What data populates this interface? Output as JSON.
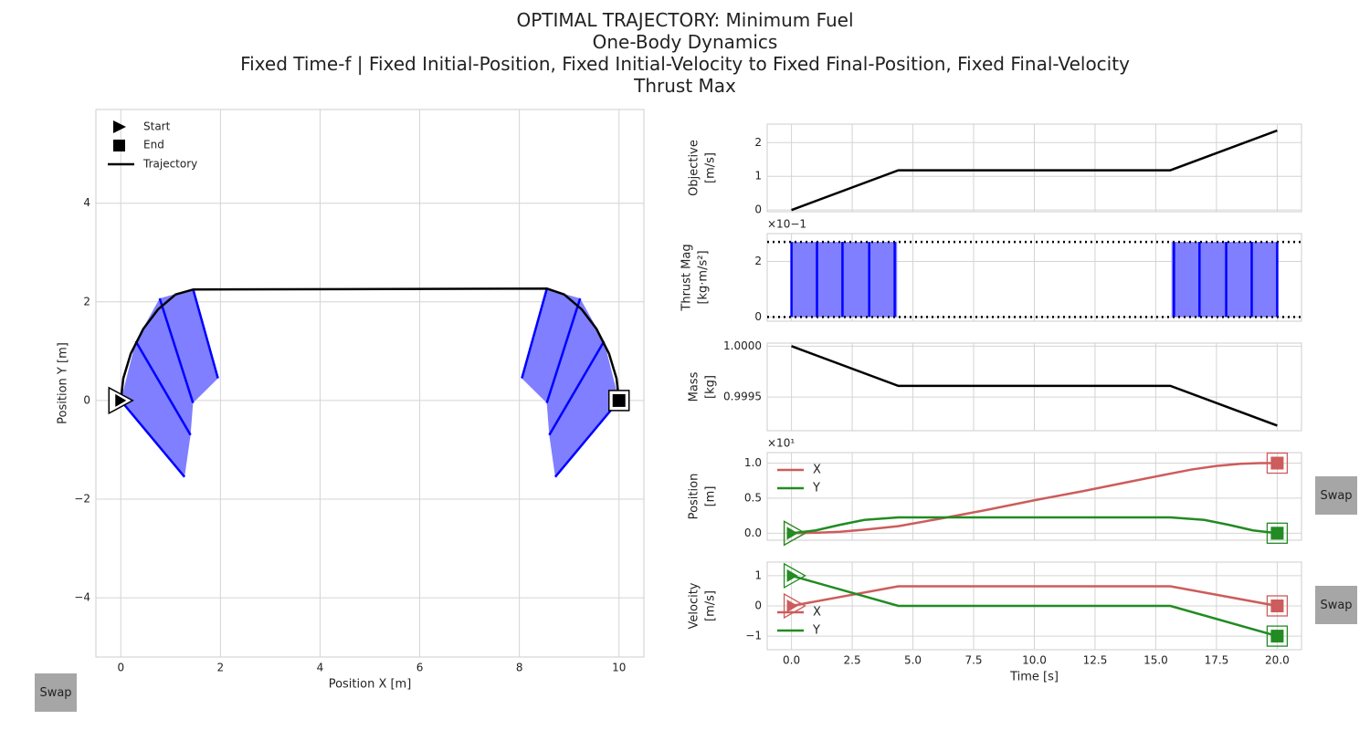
{
  "title_lines": [
    "OPTIMAL TRAJECTORY: Minimum Fuel",
    "One-Body Dynamics",
    "Fixed Time-f | Fixed Initial-Position, Fixed Initial-Velocity to Fixed Final-Position, Fixed Final-Velocity",
    "Thrust Max"
  ],
  "buttons": {
    "swap_label": "Swap"
  },
  "colors": {
    "trajectory": "#000000",
    "thrust": "#0000ff",
    "thrust_fill": "#7f7fff",
    "x_series": "#cd5c5c",
    "y_series": "#228b22",
    "grid": "#d4d4d4",
    "frame": "#cccccc"
  },
  "chart_data": [
    {
      "id": "trajectory",
      "type": "line",
      "xlabel": "Position X [m]",
      "ylabel": "Position Y [m]",
      "xlim": [
        -0.5,
        10.5
      ],
      "ylim": [
        -5.2,
        5.9
      ],
      "xticks": [
        0,
        2,
        4,
        6,
        8,
        10
      ],
      "yticks": [
        -4,
        -2,
        0,
        2,
        4
      ],
      "ytick_labels": [
        "−4",
        "−2",
        "0",
        "2",
        "4"
      ],
      "legend": [
        "Start",
        "End",
        "Trajectory"
      ],
      "legend_position": "top-left",
      "grid": true,
      "path": [
        [
          0,
          0
        ],
        [
          0.05,
          0.45
        ],
        [
          0.2,
          0.95
        ],
        [
          0.45,
          1.45
        ],
        [
          0.75,
          1.85
        ],
        [
          1.1,
          2.15
        ],
        [
          1.45,
          2.25
        ],
        [
          8.55,
          2.27
        ],
        [
          8.9,
          2.15
        ],
        [
          9.25,
          1.85
        ],
        [
          9.55,
          1.45
        ],
        [
          9.8,
          0.95
        ],
        [
          9.95,
          0.45
        ],
        [
          10,
          0
        ]
      ],
      "thrust_vectors_start": [
        [
          [
            0,
            0
          ],
          [
            1.28,
            -1.55
          ]
        ],
        [
          [
            0.3,
            1.2
          ],
          [
            1.4,
            -0.7
          ]
        ],
        [
          [
            0.78,
            2.07
          ],
          [
            1.45,
            -0.05
          ]
        ],
        [
          [
            1.45,
            2.26
          ],
          [
            1.95,
            0.45
          ]
        ]
      ],
      "thrust_vectors_end": [
        [
          [
            8.55,
            2.26
          ],
          [
            8.05,
            0.45
          ]
        ],
        [
          [
            9.22,
            2.07
          ],
          [
            8.55,
            -0.05
          ]
        ],
        [
          [
            9.7,
            1.2
          ],
          [
            8.6,
            -0.7
          ]
        ],
        [
          [
            10,
            0
          ],
          [
            8.72,
            -1.55
          ]
        ]
      ],
      "start": [
        0,
        0
      ],
      "end": [
        10,
        0
      ]
    },
    {
      "id": "objective",
      "type": "line",
      "ylabel": "Objective\n[m/s]",
      "xlim": [
        -1,
        21
      ],
      "ylim": [
        -0.05,
        2.55
      ],
      "yticks": [
        0,
        1,
        2
      ],
      "grid": true,
      "series": [
        {
          "x": [
            0,
            4.4,
            15.6,
            20
          ],
          "y": [
            0,
            1.18,
            1.18,
            2.36
          ]
        }
      ]
    },
    {
      "id": "thrust_mag",
      "type": "area",
      "ylabel": "Thrust Mag\n[kg·m/s²]",
      "scale_label": "×10−1",
      "ylim": [
        -0.15,
        3.0
      ],
      "yticks": [
        0,
        2
      ],
      "max": 2.7,
      "min": 0,
      "on_intervals": [
        [
          0,
          4.35
        ],
        [
          15.65,
          20
        ]
      ],
      "sample_lines": [
        0,
        1.05,
        2.1,
        3.2,
        4.25,
        15.75,
        16.8,
        17.9,
        18.95,
        20
      ],
      "grid": true
    },
    {
      "id": "mass",
      "type": "line",
      "ylabel": "Mass\n[kg]",
      "ylim": [
        0.99917,
        1.00003
      ],
      "yticks": [
        1.0,
        0.9995
      ],
      "ytick_labels": [
        "1.0000",
        "0.9995"
      ],
      "grid": true,
      "series": [
        {
          "x": [
            0,
            4.4,
            15.6,
            20
          ],
          "y": [
            1.0,
            0.99961,
            0.99961,
            0.99922
          ]
        }
      ]
    },
    {
      "id": "position",
      "type": "line",
      "ylabel": "Position\n[m]",
      "scale_label": "×10¹",
      "ylim": [
        -0.1,
        1.15
      ],
      "yticks": [
        0.0,
        0.5,
        1.0
      ],
      "ytick_labels": [
        "0.0",
        "0.5",
        "1.0"
      ],
      "legend": [
        "X",
        "Y"
      ],
      "legend_position": "top-left",
      "grid": true,
      "series": [
        {
          "name": "X",
          "x": [
            0,
            1,
            2,
            3,
            4.4,
            6,
            8,
            10,
            12,
            14,
            15.6,
            16.5,
            17.5,
            18.5,
            19.3,
            20
          ],
          "y": [
            0,
            0.006,
            0.02,
            0.05,
            0.1,
            0.2,
            0.33,
            0.47,
            0.6,
            0.74,
            0.85,
            0.91,
            0.96,
            0.99,
            1.0,
            1.0
          ]
        },
        {
          "name": "Y",
          "x": [
            0,
            1,
            2,
            3,
            4.4,
            10,
            15.6,
            17,
            18,
            19,
            20
          ],
          "y": [
            0,
            0.04,
            0.12,
            0.19,
            0.225,
            0.225,
            0.225,
            0.19,
            0.12,
            0.04,
            0
          ]
        }
      ]
    },
    {
      "id": "velocity",
      "type": "line",
      "ylabel": "Velocity\n[m/s]",
      "xlabel": "Time [s]",
      "ylim": [
        -1.45,
        1.45
      ],
      "yticks": [
        1,
        0,
        -1
      ],
      "ytick_labels": [
        "1",
        "0",
        "−1"
      ],
      "xticks": [
        0,
        2.5,
        5,
        7.5,
        10,
        12.5,
        15,
        17.5,
        20
      ],
      "xtick_labels": [
        "0.0",
        "2.5",
        "5.0",
        "7.5",
        "10.0",
        "12.5",
        "15.0",
        "17.5",
        "20.0"
      ],
      "legend": [
        "X",
        "Y"
      ],
      "legend_position": "center-left",
      "grid": true,
      "series": [
        {
          "name": "X",
          "x": [
            0,
            4.4,
            15.6,
            20
          ],
          "y": [
            0,
            0.65,
            0.65,
            0
          ]
        },
        {
          "name": "Y",
          "x": [
            0,
            4.4,
            15.6,
            20
          ],
          "y": [
            1,
            0,
            0,
            -1
          ]
        }
      ]
    }
  ]
}
